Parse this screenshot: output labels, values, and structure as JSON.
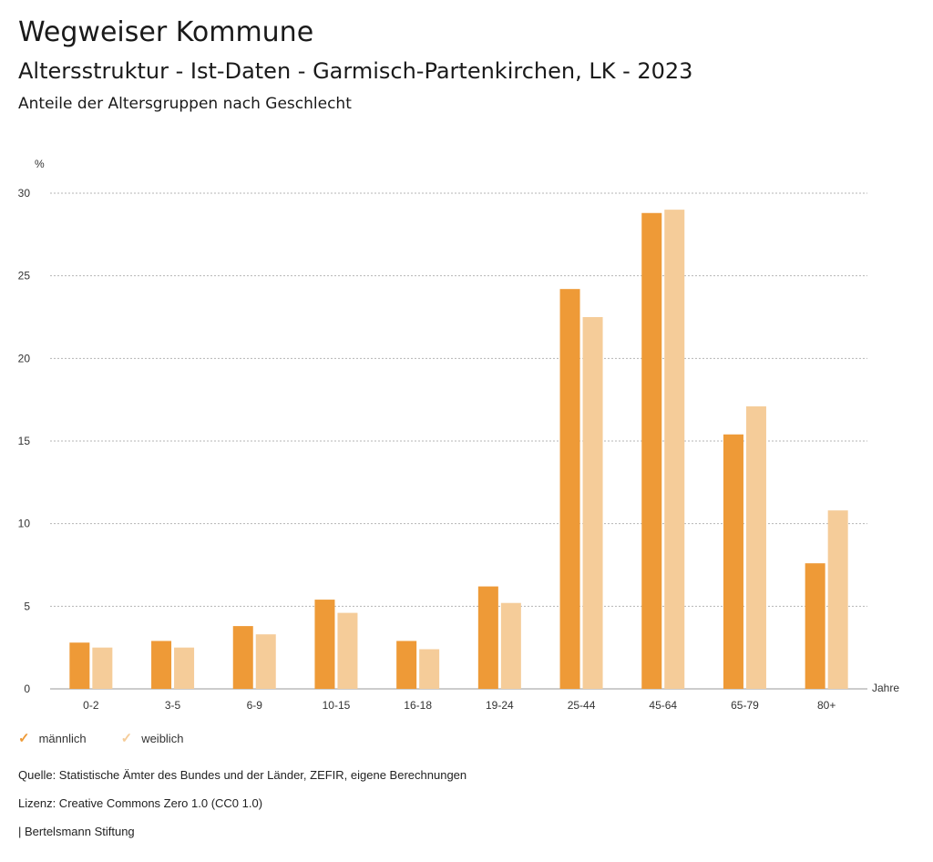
{
  "header": {
    "title": "Wegweiser Kommune",
    "subtitle": "Altersstruktur - Ist-Daten - Garmisch-Partenkirchen, LK - 2023",
    "subsubtitle": "Anteile der Altersgruppen nach Geschlecht"
  },
  "chart_data": {
    "type": "bar",
    "ylabel": "%",
    "xlabel": "Jahre",
    "ylim": [
      0,
      30
    ],
    "yticks": [
      0,
      5,
      10,
      15,
      20,
      25,
      30
    ],
    "grid": true,
    "legend_position": "bottom-left",
    "categories": [
      "0-2",
      "3-5",
      "6-9",
      "10-15",
      "16-18",
      "19-24",
      "25-44",
      "45-64",
      "65-79",
      "80+"
    ],
    "series": [
      {
        "name": "männlich",
        "color": "#ee9a37",
        "values": [
          2.8,
          2.9,
          3.8,
          5.4,
          2.9,
          6.2,
          24.2,
          28.8,
          15.4,
          7.6
        ]
      },
      {
        "name": "weiblich",
        "color": "#f5cc99",
        "values": [
          2.5,
          2.5,
          3.3,
          4.6,
          2.4,
          5.2,
          22.5,
          29.0,
          17.1,
          10.8
        ]
      }
    ]
  },
  "footer": {
    "source": "Quelle: Statistische Ämter des Bundes und der Länder, ZEFIR, eigene Berechnungen",
    "license": "Lizenz: Creative Commons Zero 1.0 (CC0 1.0)",
    "publisher": "| Bertelsmann Stiftung"
  }
}
